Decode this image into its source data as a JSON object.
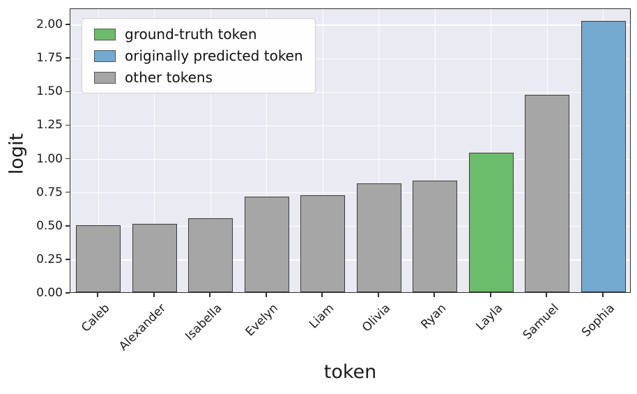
{
  "chart_data": {
    "type": "bar",
    "categories": [
      "Caleb",
      "Alexander",
      "Isabella",
      "Evelyn",
      "Liam",
      "Olivia",
      "Ryan",
      "Layla",
      "Samuel",
      "Sophia"
    ],
    "values": [
      0.5,
      0.51,
      0.55,
      0.71,
      0.72,
      0.81,
      0.83,
      1.04,
      1.47,
      2.02
    ],
    "bar_roles": [
      "other",
      "other",
      "other",
      "other",
      "other",
      "other",
      "other",
      "ground_truth",
      "other",
      "predicted"
    ],
    "title": "",
    "xlabel": "token",
    "ylabel": "logit",
    "yticks": [
      "0.00",
      "0.25",
      "0.50",
      "0.75",
      "1.00",
      "1.25",
      "1.50",
      "1.75",
      "2.00"
    ],
    "ylim": [
      0,
      2.12
    ],
    "grid": true,
    "legend_position": "upper-left",
    "legend": [
      {
        "label": "ground-truth token",
        "role": "ground_truth"
      },
      {
        "label": "originally predicted token",
        "role": "predicted"
      },
      {
        "label": "other tokens",
        "role": "other"
      }
    ],
    "colors": {
      "ground_truth": "#6bbc6b",
      "predicted": "#74a9d0",
      "other": "#a6a6a6",
      "edge": "#3a3a3a",
      "plot_bg": "#eaeaf2",
      "grid": "#ffffff"
    }
  }
}
